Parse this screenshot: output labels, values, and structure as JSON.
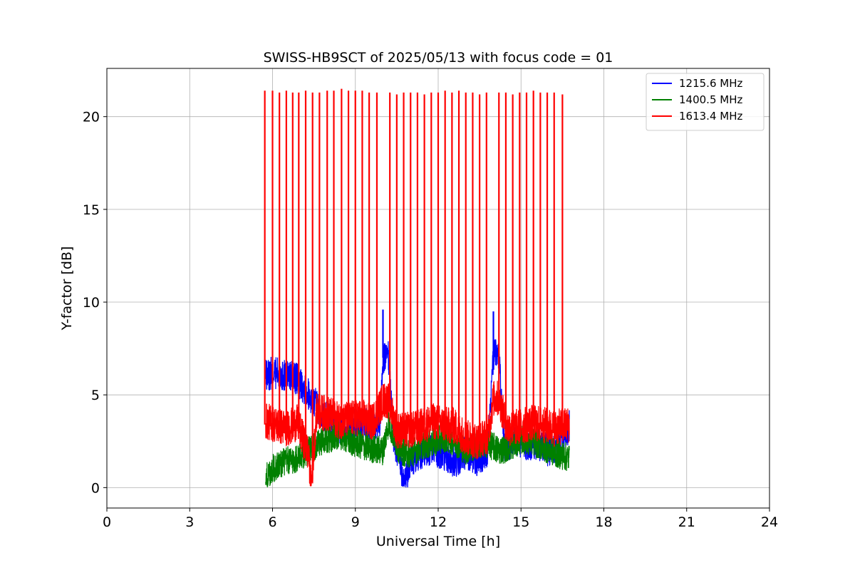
{
  "chart_data": {
    "type": "line",
    "title": "SWISS-HB9SCT of 2025/05/13 with focus code = 01",
    "xlabel": "Universal Time [h]",
    "ylabel": "Y-factor [dB]",
    "xlim": [
      0,
      24
    ],
    "ylim": [
      -1.1,
      22.6
    ],
    "xticks": [
      0,
      3,
      6,
      9,
      12,
      15,
      18,
      21,
      24
    ],
    "yticks": [
      0,
      5,
      10,
      15,
      20
    ],
    "grid": true,
    "legend_position": "top-right",
    "x_range_of_data": [
      5.72,
      16.75
    ],
    "series": [
      {
        "name": "1215.6 MHz",
        "color": "#0000ff",
        "points": [
          [
            5.75,
            6.0
          ],
          [
            6.0,
            6.2
          ],
          [
            6.3,
            6.1
          ],
          [
            6.6,
            6.0
          ],
          [
            6.9,
            5.8
          ],
          [
            7.2,
            5.3
          ],
          [
            7.5,
            4.6
          ],
          [
            7.8,
            4.0
          ],
          [
            8.1,
            3.6
          ],
          [
            8.4,
            3.1
          ],
          [
            8.7,
            3.3
          ],
          [
            9.0,
            3.4
          ],
          [
            9.3,
            3.5
          ],
          [
            9.6,
            3.2
          ],
          [
            9.9,
            3.6
          ],
          [
            10.0,
            7.0
          ],
          [
            10.2,
            7.0
          ],
          [
            10.4,
            2.3
          ],
          [
            10.6,
            1.8
          ],
          [
            10.75,
            0.1
          ],
          [
            11.0,
            1.5
          ],
          [
            11.4,
            1.9
          ],
          [
            11.8,
            2.1
          ],
          [
            12.2,
            1.8
          ],
          [
            12.6,
            1.4
          ],
          [
            13.0,
            1.9
          ],
          [
            13.4,
            1.5
          ],
          [
            13.8,
            2.0
          ],
          [
            14.0,
            7.1
          ],
          [
            14.2,
            7.1
          ],
          [
            14.4,
            2.2
          ],
          [
            14.8,
            2.6
          ],
          [
            15.2,
            2.3
          ],
          [
            15.6,
            2.4
          ],
          [
            16.0,
            2.0
          ],
          [
            16.4,
            2.4
          ],
          [
            16.75,
            3.3
          ]
        ],
        "spikes": [
          [
            10.0,
            9.6
          ],
          [
            14.0,
            9.5
          ]
        ]
      },
      {
        "name": "1400.5 MHz",
        "color": "#008000",
        "points": [
          [
            5.75,
            0.5
          ],
          [
            6.0,
            1.0
          ],
          [
            6.4,
            1.4
          ],
          [
            6.8,
            1.5
          ],
          [
            7.2,
            1.9
          ],
          [
            7.6,
            2.3
          ],
          [
            8.0,
            2.6
          ],
          [
            8.4,
            2.9
          ],
          [
            8.8,
            2.5
          ],
          [
            9.2,
            2.3
          ],
          [
            9.6,
            2.1
          ],
          [
            10.0,
            2.0
          ],
          [
            10.2,
            3.5
          ],
          [
            10.6,
            2.0
          ],
          [
            11.0,
            1.8
          ],
          [
            11.4,
            2.3
          ],
          [
            11.8,
            2.4
          ],
          [
            12.2,
            2.7
          ],
          [
            12.6,
            2.5
          ],
          [
            13.0,
            2.0
          ],
          [
            13.4,
            2.3
          ],
          [
            13.8,
            2.4
          ],
          [
            14.2,
            2.0
          ],
          [
            14.6,
            2.2
          ],
          [
            15.0,
            2.6
          ],
          [
            15.4,
            2.5
          ],
          [
            15.8,
            2.2
          ],
          [
            16.2,
            1.9
          ],
          [
            16.75,
            1.6
          ]
        ]
      },
      {
        "name": "1613.4 MHz",
        "color": "#ff0000",
        "points": [
          [
            5.75,
            3.6
          ],
          [
            6.1,
            3.4
          ],
          [
            6.5,
            3.2
          ],
          [
            6.9,
            3.5
          ],
          [
            7.3,
            1.8
          ],
          [
            7.4,
            0.0
          ],
          [
            7.6,
            4.1
          ],
          [
            8.0,
            4.0
          ],
          [
            8.4,
            3.6
          ],
          [
            8.8,
            3.7
          ],
          [
            9.2,
            3.8
          ],
          [
            9.6,
            3.5
          ],
          [
            10.0,
            4.7
          ],
          [
            10.2,
            4.7
          ],
          [
            10.5,
            3.1
          ],
          [
            11.0,
            3.1
          ],
          [
            11.4,
            3.3
          ],
          [
            11.8,
            3.6
          ],
          [
            12.2,
            3.4
          ],
          [
            12.6,
            3.3
          ],
          [
            13.0,
            2.7
          ],
          [
            13.4,
            2.5
          ],
          [
            13.8,
            2.8
          ],
          [
            14.0,
            4.8
          ],
          [
            14.2,
            4.8
          ],
          [
            14.5,
            3.2
          ],
          [
            15.0,
            3.3
          ],
          [
            15.4,
            3.5
          ],
          [
            15.8,
            3.4
          ],
          [
            16.2,
            3.2
          ],
          [
            16.75,
            3.4
          ]
        ],
        "spikes": [
          [
            5.72,
            21.4
          ],
          [
            6.0,
            21.4
          ],
          [
            6.25,
            21.3
          ],
          [
            6.5,
            21.4
          ],
          [
            6.73,
            21.3
          ],
          [
            6.95,
            21.3
          ],
          [
            7.2,
            21.4
          ],
          [
            7.45,
            21.3
          ],
          [
            7.7,
            21.3
          ],
          [
            7.98,
            21.4
          ],
          [
            8.22,
            21.4
          ],
          [
            8.5,
            21.5
          ],
          [
            8.75,
            21.4
          ],
          [
            9.0,
            21.4
          ],
          [
            9.25,
            21.4
          ],
          [
            9.5,
            21.3
          ],
          [
            9.78,
            21.3
          ],
          [
            10.25,
            21.3
          ],
          [
            10.5,
            21.2
          ],
          [
            10.75,
            21.3
          ],
          [
            11.0,
            21.3
          ],
          [
            11.25,
            21.3
          ],
          [
            11.5,
            21.2
          ],
          [
            11.75,
            21.3
          ],
          [
            12.0,
            21.3
          ],
          [
            12.25,
            21.4
          ],
          [
            12.5,
            21.3
          ],
          [
            12.75,
            21.4
          ],
          [
            13.0,
            21.3
          ],
          [
            13.25,
            21.3
          ],
          [
            13.5,
            21.2
          ],
          [
            13.75,
            21.3
          ],
          [
            14.2,
            21.3
          ],
          [
            14.45,
            21.3
          ],
          [
            14.7,
            21.2
          ],
          [
            14.95,
            21.3
          ],
          [
            15.2,
            21.3
          ],
          [
            15.45,
            21.4
          ],
          [
            15.7,
            21.3
          ],
          [
            15.95,
            21.3
          ],
          [
            16.2,
            21.3
          ],
          [
            16.5,
            21.2
          ]
        ]
      }
    ]
  }
}
